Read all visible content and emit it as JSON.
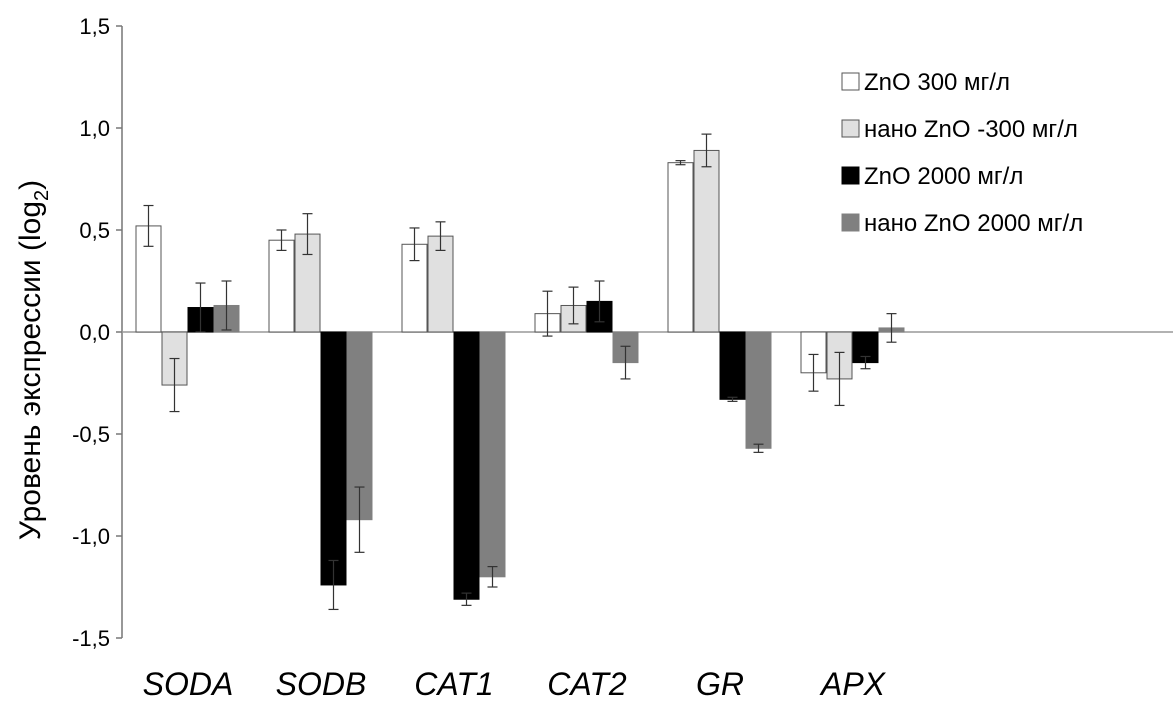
{
  "chart_data": {
    "type": "bar",
    "title": "",
    "xlabel": "",
    "ylabel": "Уровень  экспрессии  (log",
    "ylabel_sub": "2",
    "ylabel_end": ")",
    "ylim": [
      -1.5,
      1.5
    ],
    "yticks": [
      1.5,
      1.0,
      0.5,
      0.0,
      -0.5,
      -1.0,
      -1.5
    ],
    "ytick_labels": [
      "1,5",
      "1,0",
      "0,5",
      "0,0",
      "-0,5",
      "-1,0",
      "-1,5"
    ],
    "categories": [
      "SODA",
      "SODB",
      "CAT1",
      "CAT2",
      "GR",
      "APX"
    ],
    "grid": false,
    "legend_position": "top-right",
    "series": [
      {
        "name": "ZnO 300 мг/л",
        "color": "#ffffff",
        "values": [
          0.52,
          0.45,
          0.43,
          0.09,
          0.83,
          -0.2
        ],
        "errors": [
          0.1,
          0.05,
          0.08,
          0.11,
          0.01,
          0.09
        ]
      },
      {
        "name": "нано ZnO -300 мг/л",
        "color": "#e0e0e0",
        "values": [
          -0.26,
          0.48,
          0.47,
          0.13,
          0.89,
          -0.23
        ],
        "errors": [
          0.13,
          0.1,
          0.07,
          0.09,
          0.08,
          0.13
        ]
      },
      {
        "name": "ZnO 2000 мг/л",
        "color": "#000000",
        "values": [
          0.12,
          -1.24,
          -1.31,
          0.15,
          -0.33,
          -0.15
        ],
        "errors": [
          0.12,
          0.12,
          0.03,
          0.1,
          0.01,
          0.03
        ]
      },
      {
        "name": "нано ZnO 2000 мг/л",
        "color": "#808080",
        "values": [
          0.13,
          -0.92,
          -1.2,
          -0.15,
          -0.57,
          0.02
        ],
        "errors": [
          0.12,
          0.16,
          0.05,
          0.08,
          0.02,
          0.07
        ]
      }
    ]
  }
}
